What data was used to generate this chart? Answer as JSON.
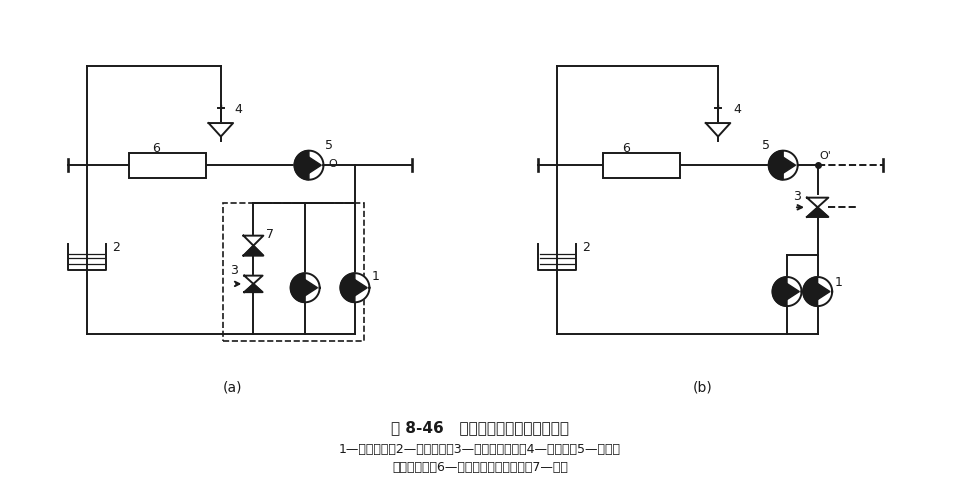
{
  "title": "图 8-46   补给水泵连续补水定压系统",
  "caption_line1": "1—补给水泵；2—补给水箱；3—补给水调节阀；4—安全阀；5—空调水",
  "caption_line2": "系统循环泵；6—冷水机组或热水锅炉；7—阀门",
  "label_a": "(a)",
  "label_b": "(b)",
  "bg_color": "#ffffff",
  "line_color": "#1a1a1a",
  "line_width": 1.4,
  "font_size_label": 9,
  "font_size_caption": 10,
  "font_size_title": 11
}
